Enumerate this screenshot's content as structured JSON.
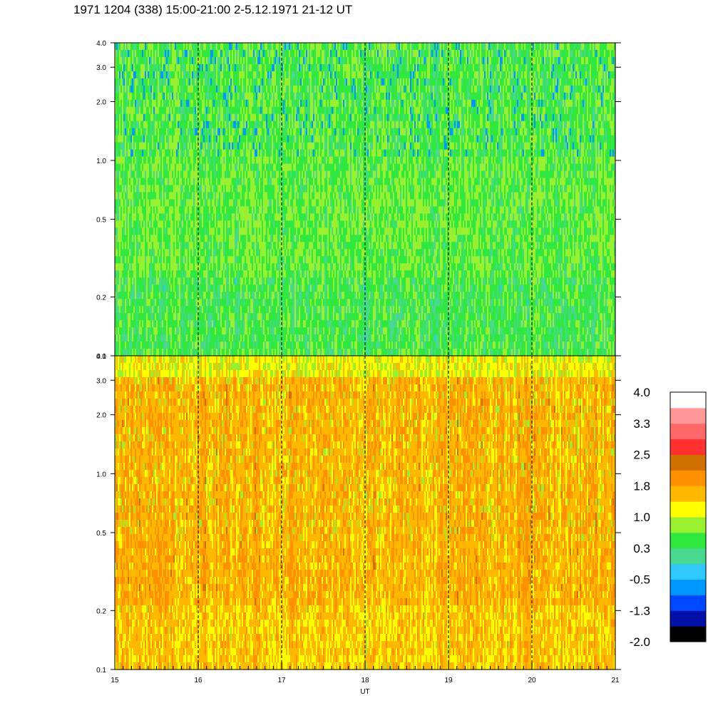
{
  "title": "1971 1204 (338) 15:00-21:00 2-5.12.1971  21-12 UT",
  "colors": {
    "scale": [
      "#000000",
      "#0010a8",
      "#0048ff",
      "#0098ff",
      "#30c8ff",
      "#48d890",
      "#30e840",
      "#98f030",
      "#ffff00",
      "#ffb800",
      "#ff9000",
      "#d07000",
      "#ff3030",
      "#ff6868",
      "#ff9898",
      "#ffffff"
    ]
  },
  "chart_data": [
    {
      "panel": "upper",
      "type": "heatmap",
      "x": {
        "range": [
          15,
          21
        ],
        "ticks": [
          15,
          16,
          17,
          18,
          19,
          20,
          21
        ],
        "tick_labels": []
      },
      "y": {
        "scale": "log",
        "range": [
          0.1,
          4.0
        ],
        "ticks": [
          4.0,
          3.0,
          2.0,
          1.0,
          0.5,
          0.2,
          0.1
        ],
        "tick_labels": [
          "4.0",
          "3.0",
          "2.0",
          "1.0",
          "0.5",
          "0.2",
          "0.1"
        ]
      },
      "hour_marker_lines": [
        16,
        17,
        18,
        19,
        20
      ],
      "dominant_levels": [
        "0.3",
        "1.0"
      ]
    },
    {
      "panel": "lower",
      "type": "heatmap",
      "x": {
        "range": [
          15,
          21
        ],
        "ticks": [
          15,
          16,
          17,
          18,
          19,
          20,
          21
        ],
        "tick_labels": [
          "15",
          "16",
          "17",
          "18",
          "19",
          "20",
          "21"
        ],
        "label": "UT"
      },
      "y": {
        "scale": "log",
        "range": [
          0.1,
          4.0
        ],
        "ticks": [
          4.0,
          3.0,
          2.0,
          1.0,
          0.5,
          0.2,
          0.1
        ],
        "tick_labels": [
          "4.0",
          "3.0",
          "2.0",
          "1.0",
          "0.5",
          "0.2",
          "0.1"
        ]
      },
      "hour_marker_lines": [
        16,
        17,
        18,
        19,
        20
      ],
      "dominant_levels": [
        "1.0",
        "1.8"
      ]
    }
  ],
  "colorbar": {
    "labels": [
      "4.0",
      "3.3",
      "2.5",
      "1.8",
      "1.0",
      "0.3",
      "-0.5",
      "-1.3",
      "-2.0"
    ]
  }
}
